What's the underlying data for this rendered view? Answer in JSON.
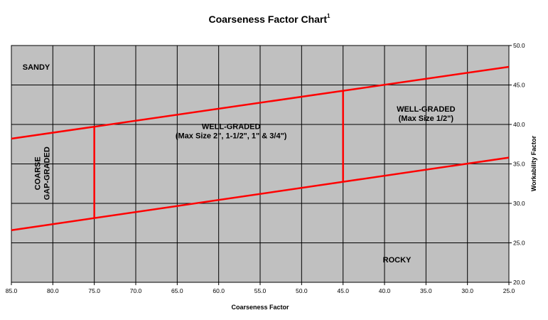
{
  "chart_data": {
    "type": "line",
    "title": "Coarseness Factor Chart",
    "title_superscript": "1",
    "xlabel": "Coarseness Factor",
    "ylabel": "Workability Factor",
    "xlim": [
      85,
      25
    ],
    "ylim": [
      20,
      50
    ],
    "x_reversed": true,
    "x_ticks": [
      "85.0",
      "80.0",
      "75.0",
      "70.0",
      "65.0",
      "60.0",
      "55.0",
      "50.0",
      "45.0",
      "40.0",
      "35.0",
      "30.0",
      "25.0"
    ],
    "y_ticks": [
      "20.0",
      "25.0",
      "30.0",
      "35.0",
      "40.0",
      "45.0",
      "50.0"
    ],
    "y_axis_side": "right",
    "grid": true,
    "background_color": "#c0c0c0",
    "line_color": "#ff0000",
    "lines": [
      {
        "x": [
          85,
          25
        ],
        "y": [
          38.2,
          47.3
        ]
      },
      {
        "x": [
          85,
          25
        ],
        "y": [
          26.6,
          35.8
        ]
      },
      {
        "x": [
          75,
          75
        ],
        "y": [
          28.2,
          39.7
        ]
      },
      {
        "x": [
          45,
          45
        ],
        "y": [
          32.8,
          44.2
        ]
      }
    ],
    "annotations": [
      {
        "id": "sandy",
        "lines": [
          "SANDY"
        ],
        "x": 82,
        "y": 47.3
      },
      {
        "id": "well-graded-large",
        "lines": [
          "WELL-GRADED",
          "(Max Size 2\", 1-1/2\", 1\" & 3/4\")"
        ],
        "x": 58.5,
        "y": 39.2
      },
      {
        "id": "well-graded-small",
        "lines": [
          "WELL-GRADED",
          "(Max Size 1/2\")"
        ],
        "x": 35,
        "y": 41.4
      },
      {
        "id": "coarse-gap-graded",
        "lines": [
          "COARSE",
          "GAP-GRADED"
        ],
        "x": 81.3,
        "y": 33.8,
        "rotate": -90
      },
      {
        "id": "rocky",
        "lines": [
          "ROCKY"
        ],
        "x": 38.5,
        "y": 22.9
      }
    ]
  }
}
